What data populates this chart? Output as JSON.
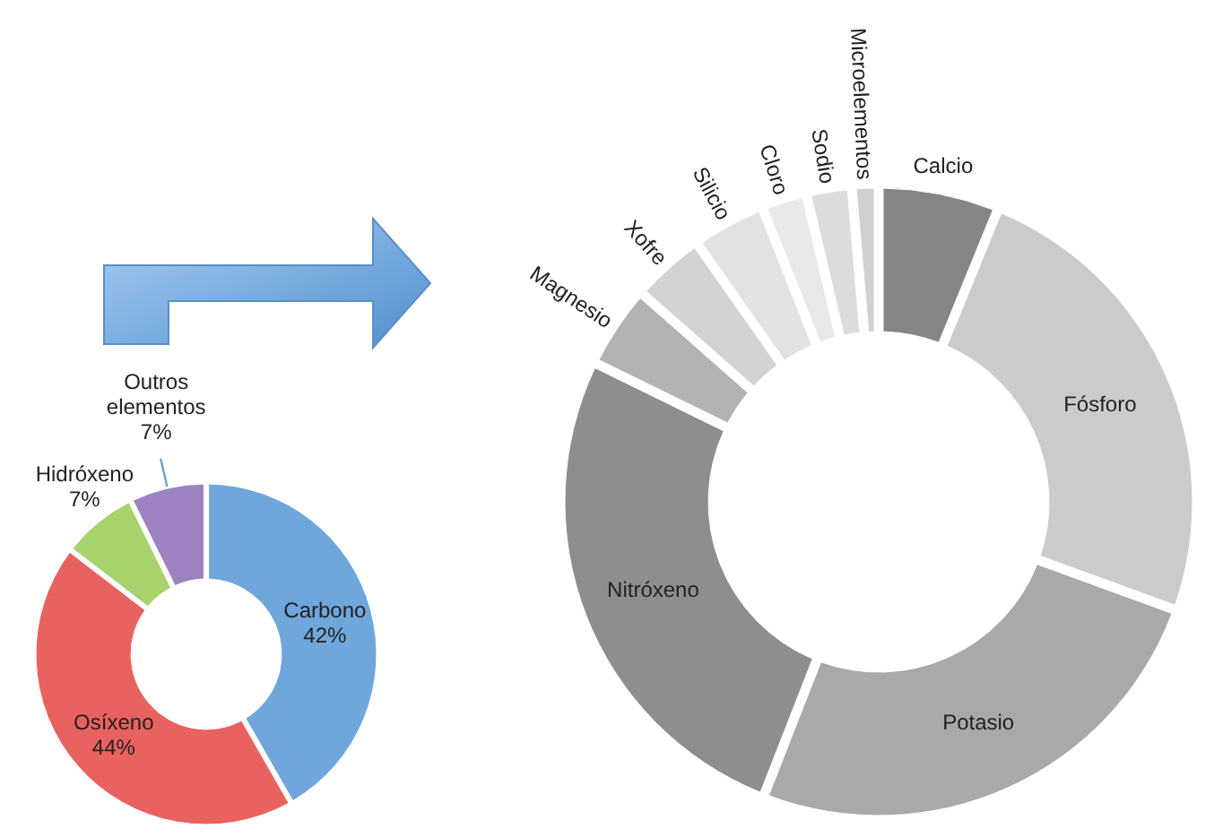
{
  "chart_data": [
    {
      "type": "donut",
      "categories": [
        "Carbono",
        "Osíxeno",
        "Hidróxeno",
        "Outros elementos"
      ],
      "values": [
        42,
        44,
        7,
        7
      ],
      "colors": [
        "#6fa6dc",
        "#e8625f",
        "#a8d26c",
        "#9d83c2"
      ],
      "data_labels": true,
      "value_labels": [
        "42%",
        "44%",
        "7%",
        "7%"
      ]
    },
    {
      "type": "donut",
      "categories": [
        "Calcio",
        "Fósforo",
        "Potasio",
        "Nitróxeno",
        "Magnesio",
        "Xofre",
        "Silicio",
        "Cloro",
        "Sodio",
        "Microelementos"
      ],
      "values": [
        6,
        25,
        26,
        27,
        4,
        3.5,
        3.5,
        2,
        2,
        1
      ],
      "colors": [
        "#858585",
        "#cbcbcb",
        "#a9a9a9",
        "#8e8e8e",
        "#b3b3b3",
        "#d3d3d3",
        "#e2e2e2",
        "#e9e9e9",
        "#dcdcdc",
        "#d0d0d0"
      ]
    }
  ]
}
